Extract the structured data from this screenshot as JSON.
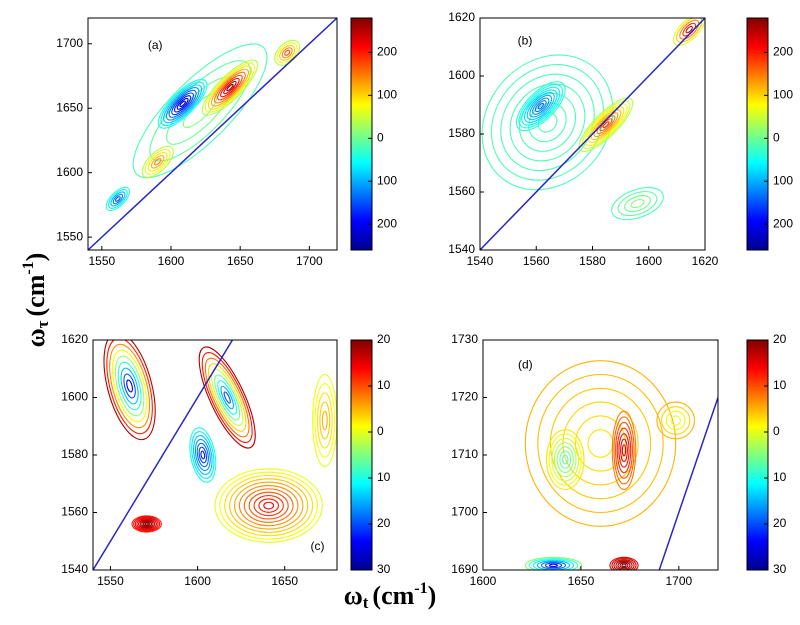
{
  "figure": {
    "ylabel": {
      "base": "ω",
      "sub": "τ",
      "unit": "(cm",
      "sup": "-1",
      "close": ")"
    },
    "xlabel": {
      "base": "ω",
      "sub": "t",
      "unit": "(cm",
      "sup": "-1",
      "close": ")"
    }
  },
  "chart_data": [
    {
      "type": "contour",
      "label": "(a)",
      "xlim": [
        1540,
        1720
      ],
      "xticks": [
        1550,
        1600,
        1650,
        1700
      ],
      "ylim": [
        1540,
        1720
      ],
      "yticks": [
        1550,
        1600,
        1650,
        1700
      ],
      "clim": [
        -260,
        280
      ],
      "cticks": [
        200,
        100,
        0,
        {
          "value": -100,
          "label": "100"
        },
        {
          "value": -200,
          "label": "200"
        }
      ],
      "diagonal": true,
      "diagonal_color": "#2828c8"
    },
    {
      "type": "contour",
      "label": "(b)",
      "xlim": [
        1540,
        1620
      ],
      "xticks": [
        1540,
        1560,
        1580,
        1600,
        1620
      ],
      "ylim": [
        1540,
        1620
      ],
      "yticks": [
        1540,
        1560,
        1580,
        1600,
        1620
      ],
      "clim": [
        -260,
        280
      ],
      "cticks": [
        200,
        100,
        0,
        {
          "value": -100,
          "label": "100"
        },
        {
          "value": -200,
          "label": "200"
        }
      ],
      "diagonal": true,
      "diagonal_color": "#2828c8"
    },
    {
      "type": "contour",
      "label": "(c)",
      "xlim": [
        1540,
        1680
      ],
      "xticks": [
        1550,
        1600,
        1650
      ],
      "ylim": [
        1540,
        1620
      ],
      "yticks": [
        1540,
        1560,
        1580,
        1600,
        1620
      ],
      "clim": [
        -30,
        20
      ],
      "cticks": [
        20,
        10,
        0,
        {
          "value": -10,
          "label": "10"
        },
        {
          "value": -20,
          "label": "20"
        },
        {
          "value": -30,
          "label": "30"
        }
      ],
      "diagonal": true,
      "diagonal_color": "#2828c8"
    },
    {
      "type": "contour",
      "label": "(d)",
      "xlim": [
        1600,
        1720
      ],
      "xticks": [
        1600,
        1650,
        1700
      ],
      "ylim": [
        1690,
        1730
      ],
      "yticks": [
        1690,
        1700,
        1710,
        1720,
        1730
      ],
      "clim": [
        -30,
        20
      ],
      "cticks": [
        20,
        10,
        0,
        {
          "value": -10,
          "label": "10"
        },
        {
          "value": -20,
          "label": "20"
        },
        {
          "value": -30,
          "label": "30"
        }
      ],
      "diagonal": true,
      "diagonal_color": "#2828c8"
    }
  ]
}
